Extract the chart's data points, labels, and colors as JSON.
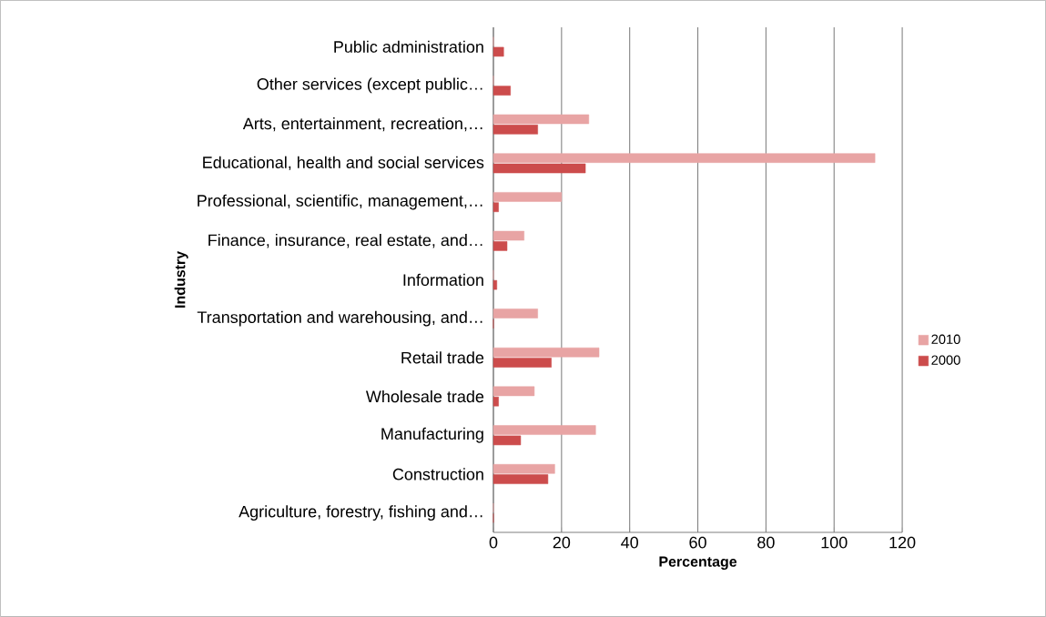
{
  "chart_data": {
    "type": "bar",
    "orientation": "horizontal",
    "xlabel": "Percentage",
    "ylabel": "Industry",
    "categories": [
      "Public administration",
      "Other services (except public…",
      "Arts, entertainment, recreation,…",
      "Educational, health and social services",
      "Professional, scientific, management,…",
      "Finance, insurance, real estate, and…",
      "Information",
      "Transportation and warehousing, and…",
      "Retail trade",
      "Wholesale trade",
      "Manufacturing",
      "Construction",
      "Agriculture, forestry, fishing and…"
    ],
    "series": [
      {
        "name": "2010",
        "color": "#e8a4a4",
        "values": [
          0,
          0,
          28,
          112,
          20,
          9,
          0,
          13,
          31,
          12,
          30,
          18,
          0
        ]
      },
      {
        "name": "2000",
        "color": "#cc4c4c",
        "values": [
          3,
          5,
          13,
          27,
          1.5,
          4,
          1,
          0,
          17,
          1.5,
          8,
          16,
          0
        ]
      }
    ],
    "xlim": [
      0,
      120
    ],
    "xticks": [
      0,
      20,
      40,
      60,
      80,
      100,
      120
    ],
    "grid": "x",
    "legend": "right"
  }
}
